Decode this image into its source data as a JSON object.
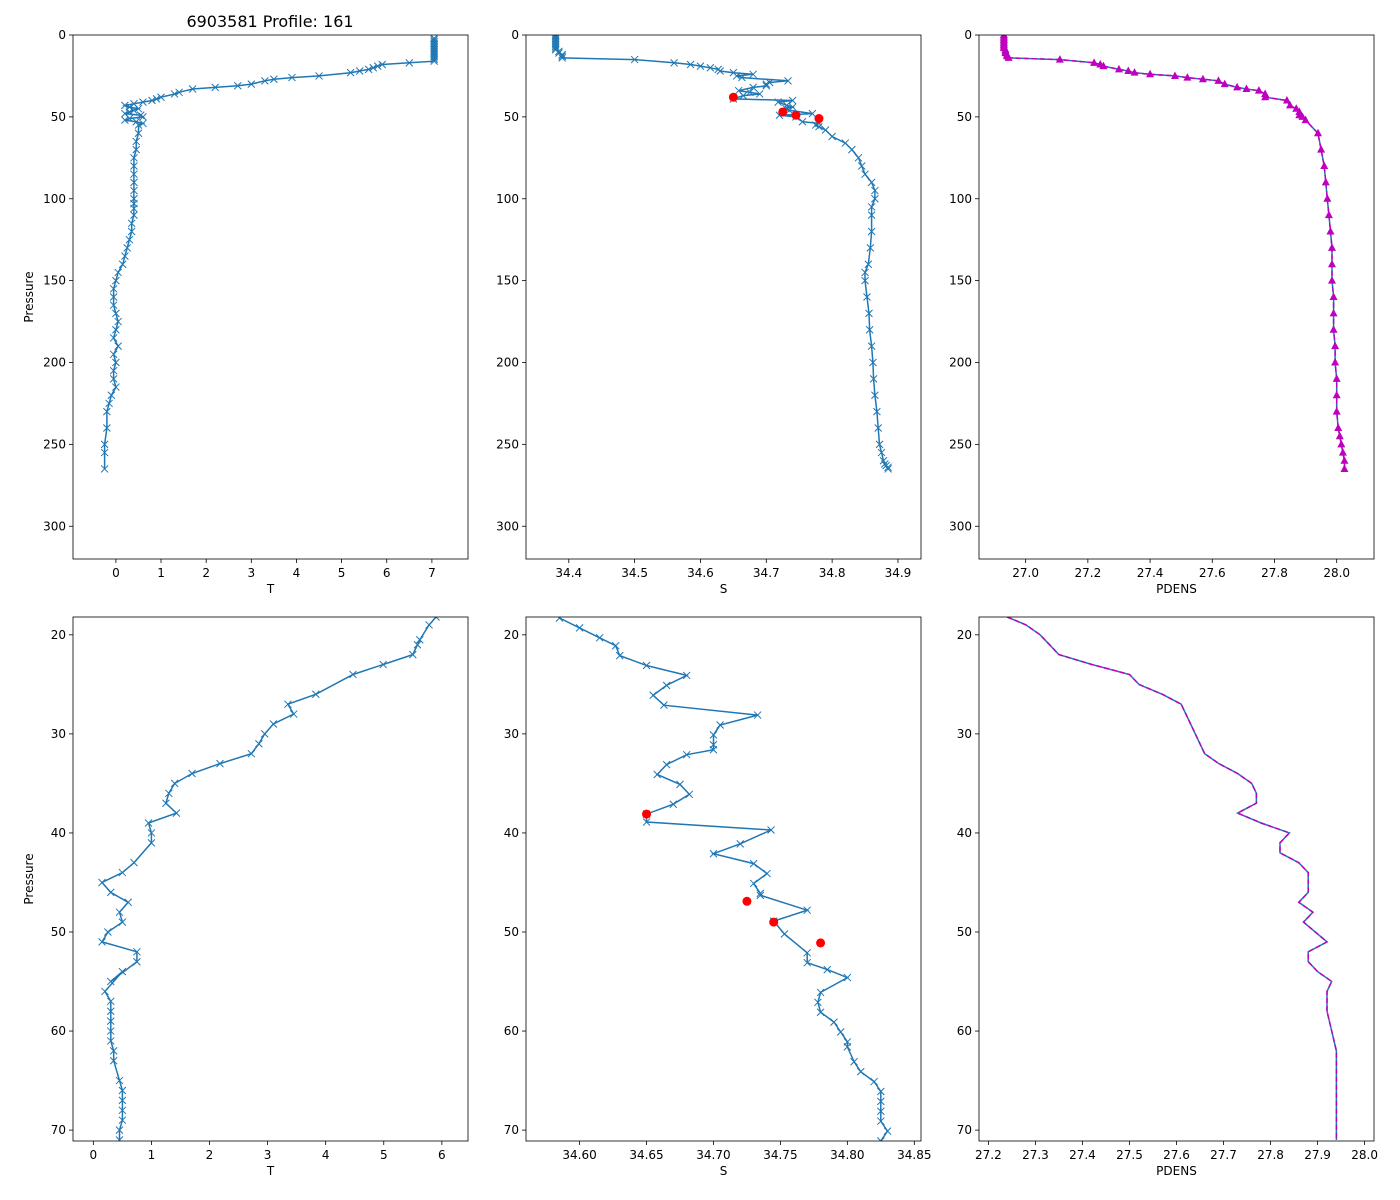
{
  "figure_title": "6903581 Profile: 161",
  "colors": {
    "line": "#1f77b4",
    "flag": "#ff0000",
    "density": "#bf00bf",
    "density_line": "#1f77b4"
  },
  "chart_data": [
    {
      "id": "top-T",
      "type": "line",
      "xlabel": "T",
      "ylabel": "Pressure",
      "xlim": [
        -0.95,
        7.8
      ],
      "ylim": [
        320,
        0
      ],
      "xticks": [
        0,
        1,
        2,
        3,
        4,
        5,
        6,
        7
      ],
      "xtick_labels": [
        "0",
        "1",
        "2",
        "3",
        "4",
        "5",
        "6",
        "7"
      ],
      "yticks": [
        0,
        50,
        100,
        150,
        200,
        250,
        300
      ],
      "ytick_labels": [
        "0",
        "50",
        "100",
        "150",
        "200",
        "250",
        "300"
      ],
      "marker": "x",
      "series": [
        {
          "name": "T",
          "x": [
            7.05,
            7.05,
            7.05,
            7.05,
            7.05,
            7.05,
            7.05,
            7.05,
            7.05,
            7.05,
            7.05,
            7.05,
            7.05,
            7.05,
            7.05,
            6.5,
            5.9,
            5.8,
            5.7,
            5.6,
            5.4,
            5.2,
            4.5,
            3.9,
            3.5,
            3.3,
            3.0,
            2.7,
            2.2,
            1.7,
            1.4,
            1.3,
            1.0,
            0.9,
            0.8,
            0.6,
            0.4,
            0.2,
            0.3,
            0.5,
            0.4,
            0.3,
            0.2,
            0.55,
            0.6,
            0.3,
            0.2,
            0.45,
            0.6,
            0.5,
            0.5,
            0.45,
            0.45,
            0.4,
            0.4,
            0.4,
            0.4,
            0.4,
            0.4,
            0.4,
            0.4,
            0.4,
            0.35,
            0.35,
            0.3,
            0.25,
            0.2,
            0.15,
            0.05,
            0.0,
            -0.05,
            -0.05,
            -0.05,
            0.0,
            0.05,
            0.0,
            -0.05,
            0.05,
            -0.05,
            0.0,
            -0.05,
            -0.05,
            0.0,
            -0.1,
            -0.15,
            -0.2,
            -0.2,
            -0.25,
            -0.25,
            -0.25
          ],
          "y": [
            2,
            3,
            4,
            5,
            6,
            7,
            8,
            9,
            10,
            11,
            12,
            13,
            14,
            15,
            16,
            17,
            18,
            19,
            20,
            21,
            22,
            23,
            25,
            26,
            27,
            28,
            30,
            31,
            32,
            33,
            35,
            36,
            38,
            39,
            40,
            41,
            42,
            43,
            44,
            45,
            46,
            47,
            48,
            49,
            50,
            51,
            52,
            53,
            54,
            55,
            60,
            65,
            70,
            75,
            80,
            85,
            90,
            95,
            100,
            103,
            106,
            110,
            115,
            120,
            125,
            130,
            135,
            140,
            145,
            150,
            155,
            160,
            165,
            170,
            175,
            180,
            185,
            190,
            195,
            200,
            205,
            210,
            215,
            220,
            225,
            230,
            240,
            250,
            255,
            265
          ]
        }
      ]
    },
    {
      "id": "top-S",
      "type": "line",
      "xlabel": "S",
      "ylabel": "",
      "xlim": [
        34.335,
        34.935
      ],
      "ylim": [
        320,
        0
      ],
      "xticks": [
        34.4,
        34.5,
        34.6,
        34.7,
        34.8,
        34.9
      ],
      "xtick_labels": [
        "34.4",
        "34.5",
        "34.6",
        "34.7",
        "34.8",
        "34.9"
      ],
      "yticks": [
        0,
        50,
        100,
        150,
        200,
        250,
        300
      ],
      "ytick_labels": [
        "0",
        "50",
        "100",
        "150",
        "200",
        "250",
        "300"
      ],
      "marker": "x",
      "series": [
        {
          "name": "S",
          "x": [
            34.38,
            34.38,
            34.38,
            34.38,
            34.38,
            34.38,
            34.38,
            34.38,
            34.38,
            34.38,
            34.385,
            34.385,
            34.39,
            34.39,
            34.39,
            34.5,
            34.56,
            34.585,
            34.6,
            34.615,
            34.627,
            34.63,
            34.65,
            34.68,
            34.655,
            34.663,
            34.733,
            34.705,
            34.7,
            34.7,
            34.68,
            34.658,
            34.675,
            34.69,
            34.665,
            34.65,
            34.74,
            34.718,
            34.731,
            34.74,
            34.73,
            34.735,
            34.77,
            34.72,
            34.745,
            34.755,
            34.78,
            34.775,
            34.78,
            34.79,
            34.8,
            34.82,
            34.83,
            34.84,
            34.845,
            34.85,
            34.86,
            34.865,
            34.865,
            34.86,
            34.86,
            34.86,
            34.858,
            34.855,
            34.85,
            34.85,
            34.853,
            34.856,
            34.857,
            34.86,
            34.862,
            34.863,
            34.865,
            34.868,
            34.87,
            34.872,
            34.875,
            34.878,
            34.88,
            34.882,
            34.885,
            34.885
          ],
          "y": [
            0,
            1,
            2,
            3,
            4,
            5,
            6,
            7,
            8,
            9,
            10,
            11,
            12,
            13,
            14,
            15,
            17,
            18,
            19,
            20,
            21,
            22,
            23,
            24,
            25,
            26,
            28,
            29,
            30,
            31,
            32,
            34,
            35,
            36,
            37,
            39,
            40,
            41,
            43,
            44,
            45,
            46,
            48,
            49,
            50,
            53,
            54,
            55,
            56,
            58,
            62,
            66,
            70,
            75,
            80,
            85,
            90,
            95,
            100,
            105,
            110,
            120,
            130,
            140,
            145,
            150,
            160,
            170,
            180,
            190,
            200,
            210,
            220,
            230,
            240,
            250,
            255,
            260,
            262,
            263,
            264,
            265
          ]
        }
      ],
      "flagged": {
        "x": [
          34.65,
          34.725,
          34.745,
          34.78
        ],
        "y": [
          38,
          47,
          49,
          51
        ]
      }
    },
    {
      "id": "top-PDENS",
      "type": "line",
      "xlabel": "PDENS",
      "ylabel": "",
      "xlim": [
        26.85,
        28.12
      ],
      "ylim": [
        320,
        0
      ],
      "xticks": [
        27.0,
        27.2,
        27.4,
        27.6,
        27.8,
        28.0
      ],
      "xtick_labels": [
        "27.0",
        "27.2",
        "27.4",
        "27.6",
        "27.8",
        "28.0"
      ],
      "yticks": [
        0,
        50,
        100,
        150,
        200,
        250,
        300
      ],
      "ytick_labels": [
        "0",
        "50",
        "100",
        "150",
        "200",
        "250",
        "300"
      ],
      "marker": "^",
      "series": [
        {
          "name": "PDENS",
          "x": [
            26.93,
            26.93,
            26.93,
            26.93,
            26.93,
            26.93,
            26.93,
            26.93,
            26.93,
            26.935,
            26.935,
            26.935,
            26.94,
            26.94,
            26.945,
            27.11,
            27.22,
            27.24,
            27.25,
            27.3,
            27.33,
            27.35,
            27.4,
            27.48,
            27.52,
            27.57,
            27.62,
            27.64,
            27.68,
            27.71,
            27.75,
            27.77,
            27.77,
            27.84,
            27.85,
            27.87,
            27.88,
            27.88,
            27.89,
            27.9,
            27.94,
            27.95,
            27.96,
            27.965,
            27.97,
            27.975,
            27.98,
            27.985,
            27.985,
            27.985,
            27.99,
            27.99,
            27.99,
            27.995,
            27.995,
            28.0,
            28.0,
            28.0,
            28.005,
            28.01,
            28.015,
            28.02,
            28.025,
            28.025
          ],
          "y": [
            0,
            1,
            2,
            3,
            4,
            5,
            6,
            7,
            8,
            9,
            10,
            11,
            12,
            13,
            14,
            15,
            17,
            18,
            19,
            21,
            22,
            23,
            24,
            25,
            26,
            27,
            28,
            30,
            32,
            33,
            34,
            36,
            38,
            40,
            43,
            45,
            47,
            49,
            50,
            52,
            60,
            70,
            80,
            90,
            100,
            110,
            120,
            130,
            140,
            150,
            160,
            170,
            180,
            190,
            200,
            210,
            220,
            230,
            240,
            245,
            250,
            255,
            260,
            265
          ]
        }
      ]
    },
    {
      "id": "bottom-T",
      "type": "line",
      "xlabel": "T",
      "ylabel": "Pressure",
      "xlim": [
        -0.35,
        6.45
      ],
      "ylim": [
        71.1,
        18.2
      ],
      "xticks": [
        0,
        1,
        2,
        3,
        4,
        5,
        6
      ],
      "xtick_labels": [
        "0",
        "1",
        "2",
        "3",
        "4",
        "5",
        "6"
      ],
      "yticks": [
        20,
        30,
        40,
        50,
        60,
        70
      ],
      "ytick_labels": [
        "20",
        "30",
        "40",
        "50",
        "60",
        "70"
      ],
      "marker": "x",
      "series": [
        {
          "name": "T",
          "x": [
            5.9,
            5.78,
            5.62,
            5.58,
            5.5,
            4.99,
            4.47,
            3.83,
            3.35,
            3.45,
            3.1,
            2.95,
            2.85,
            2.72,
            2.18,
            1.7,
            1.4,
            1.3,
            1.25,
            1.43,
            0.95,
            1.0,
            1.0,
            0.7,
            0.5,
            0.15,
            0.3,
            0.6,
            0.45,
            0.5,
            0.25,
            0.15,
            0.75,
            0.75,
            0.3,
            0.5,
            0.2,
            0.3,
            0.3,
            0.3,
            0.3,
            0.3,
            0.35,
            0.35,
            0.45,
            0.5,
            0.5,
            0.5,
            0.5,
            0.45,
            0.45
          ],
          "y": [
            18.2,
            19,
            20.5,
            21,
            22,
            23,
            24,
            26,
            27,
            28,
            29,
            30,
            31,
            32,
            33,
            34,
            35,
            36,
            37,
            38,
            39,
            40,
            41,
            43,
            44,
            45,
            46,
            47,
            48,
            49,
            50,
            51,
            52,
            53,
            55,
            54,
            56,
            57,
            58,
            59,
            60,
            61,
            62,
            63,
            65,
            66,
            67,
            68,
            69,
            70,
            71
          ]
        }
      ]
    },
    {
      "id": "bottom-S",
      "type": "line",
      "xlabel": "S",
      "ylabel": "",
      "xlim": [
        34.56,
        34.855
      ],
      "ylim": [
        71.1,
        18.2
      ],
      "xticks": [
        34.6,
        34.65,
        34.7,
        34.75,
        34.8,
        34.85
      ],
      "xtick_labels": [
        "34.60",
        "34.65",
        "34.70",
        "34.75",
        "34.80",
        "34.85"
      ],
      "yticks": [
        20,
        30,
        40,
        50,
        60,
        70
      ],
      "ytick_labels": [
        "20",
        "30",
        "40",
        "50",
        "60",
        "70"
      ],
      "marker": "x",
      "series": [
        {
          "name": "S",
          "x": [
            34.585,
            34.6,
            34.615,
            34.627,
            34.63,
            34.65,
            34.68,
            34.665,
            34.655,
            34.663,
            34.733,
            34.705,
            34.7,
            34.7,
            34.7,
            34.68,
            34.665,
            34.658,
            34.675,
            34.682,
            34.67,
            34.65,
            34.65,
            34.743,
            34.72,
            34.7,
            34.73,
            34.74,
            34.73,
            34.735,
            34.735,
            34.77,
            34.745,
            34.753,
            34.77,
            34.77,
            34.785,
            34.8,
            34.78,
            34.778,
            34.78,
            34.79,
            34.795,
            34.8,
            34.8,
            34.805,
            34.81,
            34.82,
            34.825,
            34.825,
            34.825,
            34.825,
            34.83,
            34.825
          ],
          "y": [
            18.3,
            19.3,
            20.3,
            21.1,
            22.1,
            23.1,
            24.1,
            25.1,
            26.1,
            27.1,
            28.1,
            29.1,
            30.1,
            31.1,
            31.6,
            32.1,
            33.1,
            34.1,
            35.1,
            36.1,
            37.1,
            38.1,
            38.9,
            39.7,
            41.1,
            42.1,
            43.1,
            44.1,
            45.1,
            46.1,
            46.3,
            47.8,
            48.9,
            50.2,
            52.1,
            53.1,
            53.8,
            54.6,
            56.1,
            57.1,
            58.1,
            59.1,
            60.1,
            61.1,
            61.6,
            63.1,
            64.1,
            65.1,
            66.1,
            67.1,
            68.1,
            69.1,
            70.1,
            71.1
          ]
        }
      ],
      "flagged": {
        "x": [
          34.65,
          34.725,
          34.745,
          34.78
        ],
        "y": [
          38.1,
          46.9,
          49.0,
          51.1
        ]
      }
    },
    {
      "id": "bottom-PDENS",
      "type": "line",
      "xlabel": "PDENS",
      "ylabel": "",
      "xlim": [
        27.18,
        28.02
      ],
      "ylim": [
        71.1,
        18.2
      ],
      "xticks": [
        27.2,
        27.3,
        27.4,
        27.5,
        27.6,
        27.7,
        27.8,
        27.9,
        28.0
      ],
      "xtick_labels": [
        "27.2",
        "27.3",
        "27.4",
        "27.5",
        "27.6",
        "27.7",
        "27.8",
        "27.9",
        "28.0"
      ],
      "yticks": [
        20,
        30,
        40,
        50,
        60,
        70
      ],
      "ytick_labels": [
        "20",
        "30",
        "40",
        "50",
        "60",
        "70"
      ],
      "marker": "none",
      "series": [
        {
          "name": "PDENS",
          "x": [
            27.24,
            27.28,
            27.31,
            27.33,
            27.35,
            27.42,
            27.5,
            27.52,
            27.57,
            27.61,
            27.62,
            27.63,
            27.64,
            27.65,
            27.66,
            27.69,
            27.73,
            27.76,
            27.77,
            27.77,
            27.73,
            27.78,
            27.84,
            27.82,
            27.82,
            27.86,
            27.88,
            27.88,
            27.88,
            27.86,
            27.89,
            27.87,
            27.92,
            27.88,
            27.88,
            27.9,
            27.93,
            27.92,
            27.92,
            27.93,
            27.94,
            27.94,
            27.94,
            27.94,
            27.94,
            27.94
          ],
          "y": [
            18.2,
            19,
            20,
            21,
            22,
            23,
            24,
            25,
            26,
            27,
            28,
            29,
            30,
            31,
            32,
            33,
            34,
            35,
            36,
            37,
            38,
            39,
            40,
            41,
            42,
            43,
            44,
            45,
            46,
            47,
            48,
            49,
            51,
            52,
            53,
            54,
            55,
            56,
            58,
            60,
            62,
            64,
            66,
            68,
            70,
            71
          ]
        }
      ]
    }
  ]
}
